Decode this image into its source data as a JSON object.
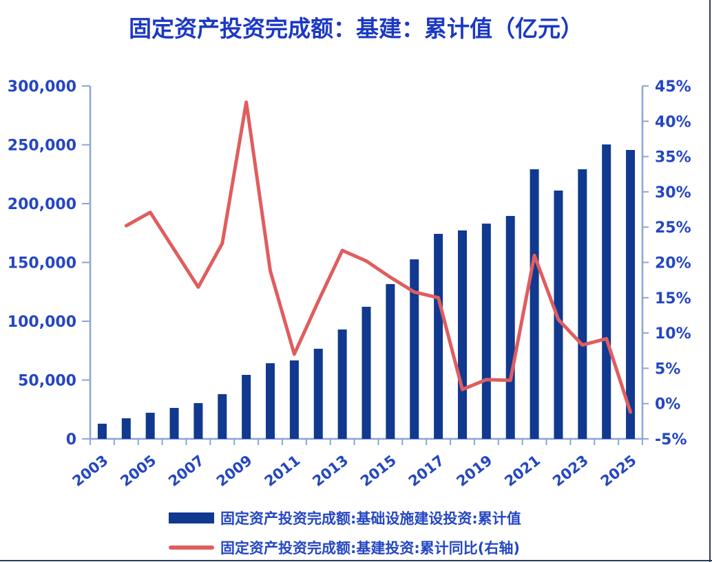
{
  "title": "固定资产投资完成额：基建：累计值（亿元）",
  "colors": {
    "title": "#1b38c4",
    "tick_label": "#2446c2",
    "axis_line": "#8aa4da",
    "bar": "#10398f",
    "line": "#e05d5e",
    "page_border": "#2b3a55"
  },
  "legend": {
    "items": [
      {
        "swatch": "bar-swatch",
        "label": "固定资产投资完成额:基础设施建设投资:累计值"
      },
      {
        "swatch": "line-swatch",
        "label": "固定资产投资完成额:基建投资:累计同比(右轴)"
      }
    ]
  },
  "chart_data": {
    "type": "bar",
    "combo": "bar+line dual axis",
    "title": "固定资产投资完成额：基建：累计值（亿元）",
    "categories": [
      "2003",
      "2004",
      "2005",
      "2006",
      "2007",
      "2008",
      "2009",
      "2010",
      "2011",
      "2012",
      "2013",
      "2014",
      "2015",
      "2016",
      "2017",
      "2018",
      "2019",
      "2020",
      "2021",
      "2022",
      "2023",
      "2024",
      "2025"
    ],
    "series": [
      {
        "name": "固定资产投资完成额:基础设施建设投资:累计值",
        "type": "bar",
        "axis": "left",
        "color": "#10398f",
        "values": [
          12900,
          17500,
          22200,
          26300,
          30400,
          38000,
          54400,
          64300,
          66700,
          76600,
          93000,
          112300,
          131600,
          152600,
          174300,
          177200,
          183000,
          189500,
          229200,
          211100,
          229200,
          250300,
          245600
        ]
      },
      {
        "name": "固定资产投资完成额:基建投资:累计同比(右轴)",
        "type": "line",
        "axis": "right",
        "color": "#e05d5e",
        "values": [
          null,
          25.2,
          27.1,
          21.8,
          16.5,
          22.7,
          42.7,
          18.8,
          7.0,
          14.5,
          21.7,
          20.2,
          17.9,
          15.8,
          15.0,
          2.0,
          3.4,
          3.3,
          21.0,
          11.9,
          8.3,
          9.2,
          -1.2
        ]
      }
    ],
    "left_axis": {
      "min": 0,
      "max": 300000,
      "step": 50000,
      "tick_labels": [
        "300,000",
        "250,000",
        "200,000",
        "150,000",
        "100,000",
        "50,000",
        "0"
      ]
    },
    "right_axis": {
      "min": -5,
      "max": 45,
      "step": 5,
      "tick_labels": [
        "45%",
        "40%",
        "35%",
        "30%",
        "25%",
        "20%",
        "15%",
        "10%",
        "5%",
        "0%",
        "-5%"
      ]
    },
    "x_tick_labels": [
      "2003",
      "2005",
      "2007",
      "2009",
      "2011",
      "2013",
      "2015",
      "2017",
      "2019",
      "2021",
      "2023",
      "2025"
    ],
    "grid": "off",
    "legend_position": "bottom"
  }
}
